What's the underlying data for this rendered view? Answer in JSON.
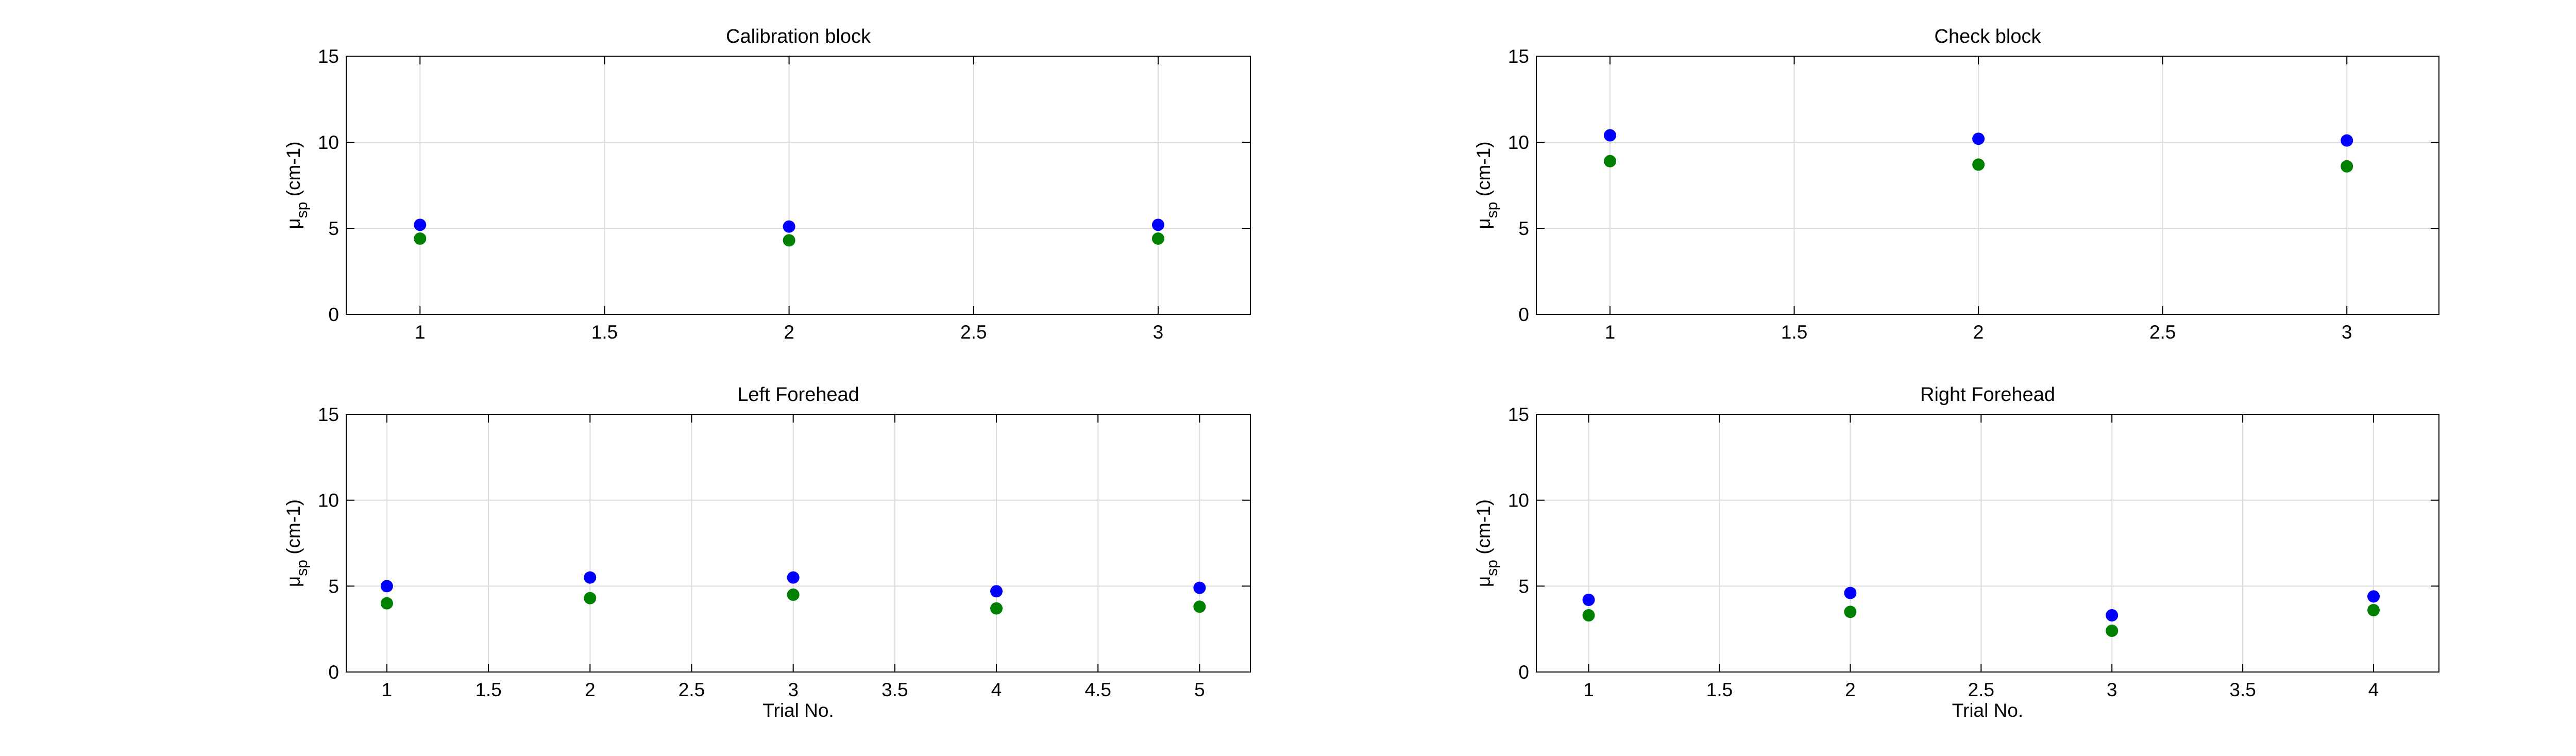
{
  "figure": {
    "background": "#ffffff",
    "axes_color": "#000000",
    "grid_color": "#dcdcdc"
  },
  "chart_data": [
    {
      "type": "scatter",
      "title": "Calibration block",
      "xlabel": "",
      "ylabel": "μsp (cm-1)",
      "ylabel_parts": {
        "mu": "μ",
        "sub": "sp",
        "unit": " (cm-1)"
      },
      "xlim": [
        0.8,
        3.25
      ],
      "ylim": [
        0,
        15
      ],
      "xticks": [
        1,
        1.5,
        2,
        2.5,
        3
      ],
      "yticks": [
        0,
        5,
        10,
        15
      ],
      "grid": true,
      "series": [
        {
          "color": "#0000ff",
          "x": [
            1,
            2,
            3
          ],
          "y": [
            5.2,
            5.1,
            5.2
          ]
        },
        {
          "color": "#008000",
          "x": [
            1,
            2,
            3
          ],
          "y": [
            4.4,
            4.3,
            4.4
          ]
        }
      ]
    },
    {
      "type": "scatter",
      "title": "Check block",
      "xlabel": "",
      "ylabel": "μsp (cm-1)",
      "ylabel_parts": {
        "mu": "μ",
        "sub": "sp",
        "unit": " (cm-1)"
      },
      "xlim": [
        0.8,
        3.25
      ],
      "ylim": [
        0,
        15
      ],
      "xticks": [
        1,
        1.5,
        2,
        2.5,
        3
      ],
      "yticks": [
        0,
        5,
        10,
        15
      ],
      "grid": true,
      "series": [
        {
          "color": "#0000ff",
          "x": [
            1,
            2,
            3
          ],
          "y": [
            10.4,
            10.2,
            10.1
          ]
        },
        {
          "color": "#008000",
          "x": [
            1,
            2,
            3
          ],
          "y": [
            8.9,
            8.7,
            8.6
          ]
        }
      ]
    },
    {
      "type": "scatter",
      "title": "Left Forehead",
      "xlabel": "Trial No.",
      "ylabel": "μsp (cm-1)",
      "ylabel_parts": {
        "mu": "μ",
        "sub": "sp",
        "unit": " (cm-1)"
      },
      "xlim": [
        0.8,
        5.25
      ],
      "ylim": [
        0,
        15
      ],
      "xticks": [
        1,
        1.5,
        2,
        2.5,
        3,
        3.5,
        4,
        4.5,
        5
      ],
      "yticks": [
        0,
        5,
        10,
        15
      ],
      "grid": true,
      "series": [
        {
          "color": "#0000ff",
          "x": [
            1,
            2,
            3,
            4,
            5
          ],
          "y": [
            5.0,
            5.5,
            5.5,
            4.7,
            4.9
          ]
        },
        {
          "color": "#008000",
          "x": [
            1,
            2,
            3,
            4,
            5
          ],
          "y": [
            4.0,
            4.3,
            4.5,
            3.7,
            3.8
          ]
        }
      ]
    },
    {
      "type": "scatter",
      "title": "Right Forehead",
      "xlabel": "Trial No.",
      "ylabel": "μsp (cm-1)",
      "ylabel_parts": {
        "mu": "μ",
        "sub": "sp",
        "unit": " (cm-1)"
      },
      "xlim": [
        0.8,
        4.25
      ],
      "ylim": [
        0,
        15
      ],
      "xticks": [
        1,
        1.5,
        2,
        2.5,
        3,
        3.5,
        4
      ],
      "yticks": [
        0,
        5,
        10,
        15
      ],
      "grid": true,
      "series": [
        {
          "color": "#0000ff",
          "x": [
            1,
            2,
            3,
            4
          ],
          "y": [
            4.2,
            4.6,
            3.3,
            4.4
          ]
        },
        {
          "color": "#008000",
          "x": [
            1,
            2,
            3,
            4
          ],
          "y": [
            3.3,
            3.5,
            2.4,
            3.6
          ]
        }
      ]
    }
  ]
}
